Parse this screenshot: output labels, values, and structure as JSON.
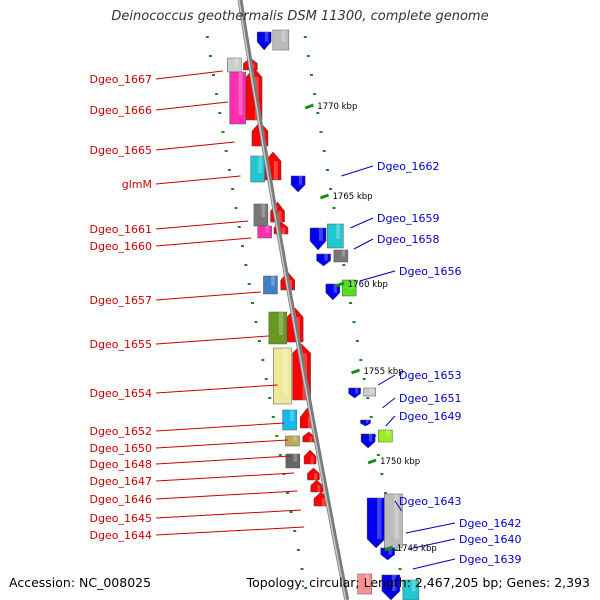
{
  "title": "Deinococcus geothermalis DSM 11300, complete genome",
  "accession": "Accession: NC_008025",
  "summary": "Topology: circular; Length: 2,467,205 bp; Genes: 2,393",
  "kbp_marks": [
    "1770 kbp",
    "1765 kbp",
    "1760 kbp",
    "1755 kbp",
    "1750 kbp",
    "1745 kbp"
  ],
  "left_labels": [
    "Dgeo_1667",
    "Dgeo_1666",
    "Dgeo_1665",
    "glmM",
    "Dgeo_1661",
    "Dgeo_1660",
    "Dgeo_1657",
    "Dgeo_1655",
    "Dgeo_1654",
    "Dgeo_1652",
    "Dgeo_1650",
    "Dgeo_1648",
    "Dgeo_1647",
    "Dgeo_1646",
    "Dgeo_1645",
    "Dgeo_1644"
  ],
  "right_labels": [
    "Dgeo_1662",
    "Dgeo_1659",
    "Dgeo_1658",
    "Dgeo_1656",
    "Dgeo_1653",
    "Dgeo_1651",
    "Dgeo_1649",
    "Dgeo_1643",
    "Dgeo_1642",
    "Dgeo_1640",
    "Dgeo_1639"
  ],
  "colors": {
    "forward_genes": "#ff0000",
    "reverse_genes": "#0000ff",
    "label_left": "#cc0000",
    "label_right": "#0000cc",
    "backbone": "#888888",
    "gc_ticks": "#1a8c1a"
  }
}
